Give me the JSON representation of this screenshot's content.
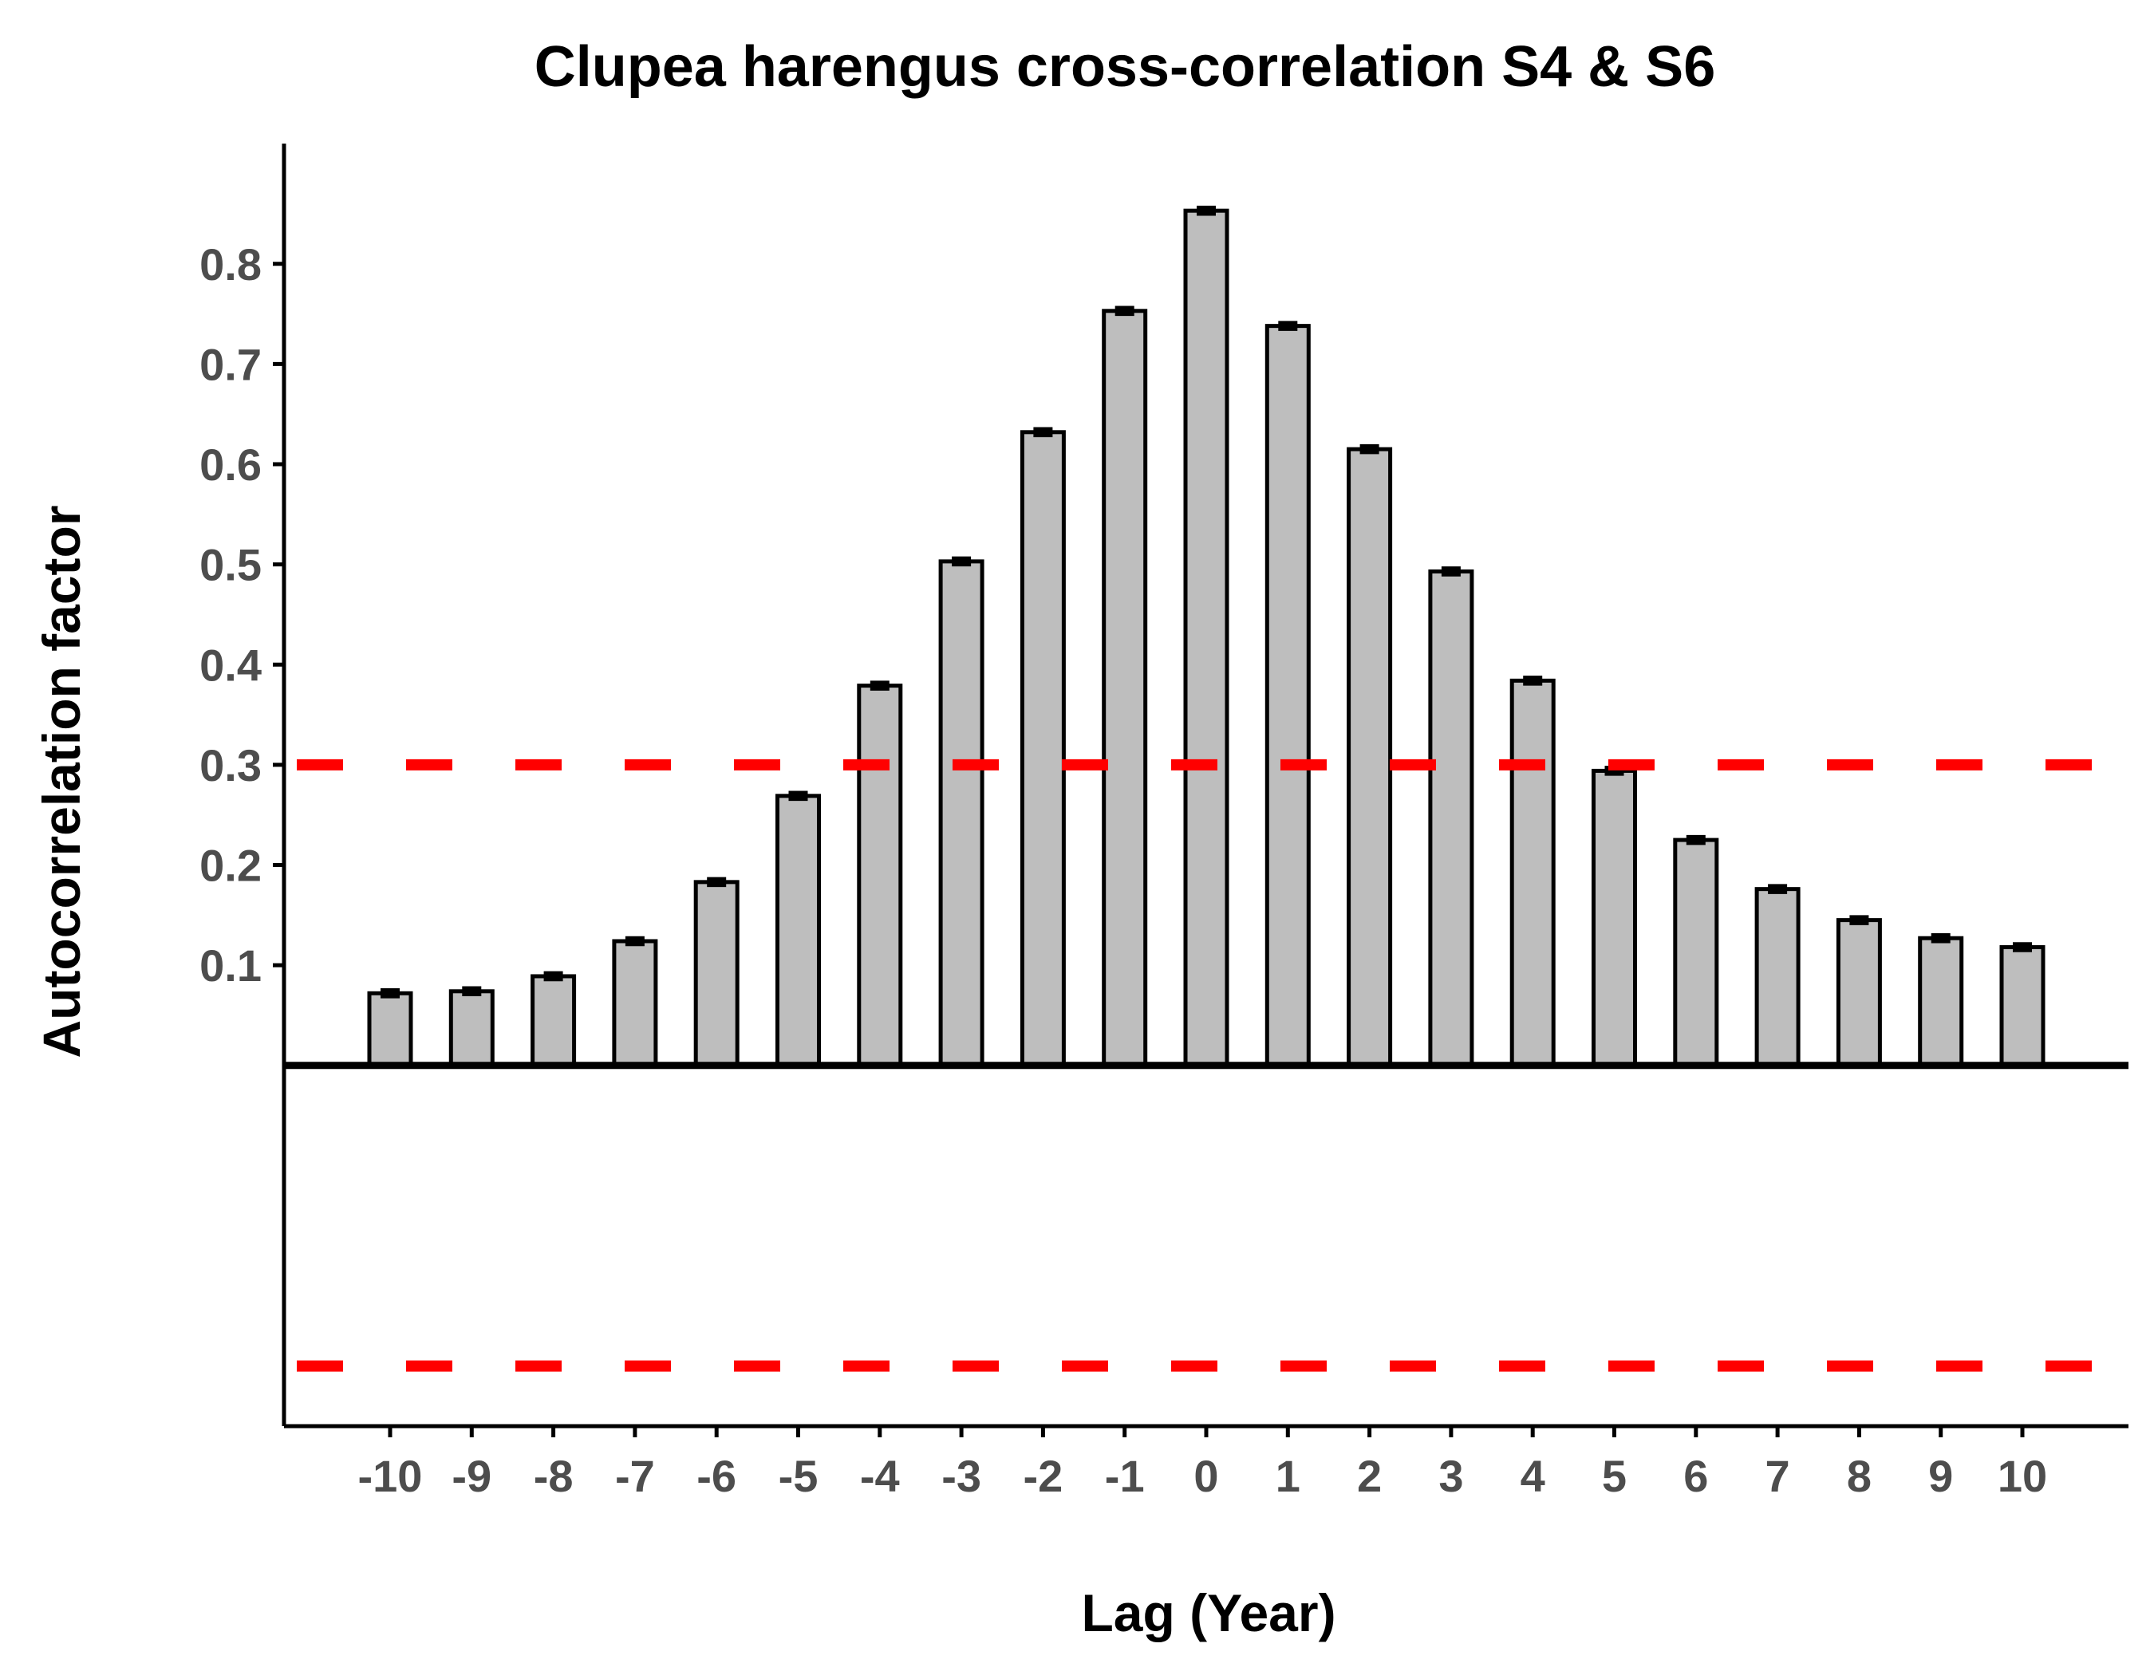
{
  "chart_data": {
    "type": "bar",
    "title": "Clupea harengus cross-correlation S4 & S6",
    "xlabel": "Lag (Year)",
    "ylabel": "Autocorrelation factor",
    "categories": [
      "-10",
      "-9",
      "-8",
      "-7",
      "-6",
      "-5",
      "-4",
      "-3",
      "-2",
      "-1",
      "0",
      "1",
      "2",
      "3",
      "4",
      "5",
      "6",
      "7",
      "8",
      "9",
      "10"
    ],
    "x": [
      -10,
      -9,
      -8,
      -7,
      -6,
      -5,
      -4,
      -3,
      -2,
      -1,
      0,
      1,
      2,
      3,
      4,
      5,
      6,
      7,
      8,
      9,
      10
    ],
    "values": [
      0.072,
      0.074,
      0.089,
      0.124,
      0.183,
      0.269,
      0.379,
      0.503,
      0.632,
      0.753,
      0.853,
      0.738,
      0.615,
      0.493,
      0.384,
      0.294,
      0.225,
      0.176,
      0.145,
      0.127,
      0.118
    ],
    "error": 0.003,
    "yticks": [
      0.1,
      0.2,
      0.3,
      0.4,
      0.5,
      0.6,
      0.7,
      0.8
    ],
    "ylim": [
      -0.36,
      0.92
    ],
    "xlim": [
      -11.3,
      11.3
    ],
    "reference_lines": [
      0.3,
      -0.3
    ],
    "colors": {
      "bar_fill": "#bebebe",
      "bar_outline": "#000000",
      "reference_line": "#ff0000",
      "tick_label": "#4d4d4d"
    },
    "grid": false,
    "legend": "none"
  }
}
